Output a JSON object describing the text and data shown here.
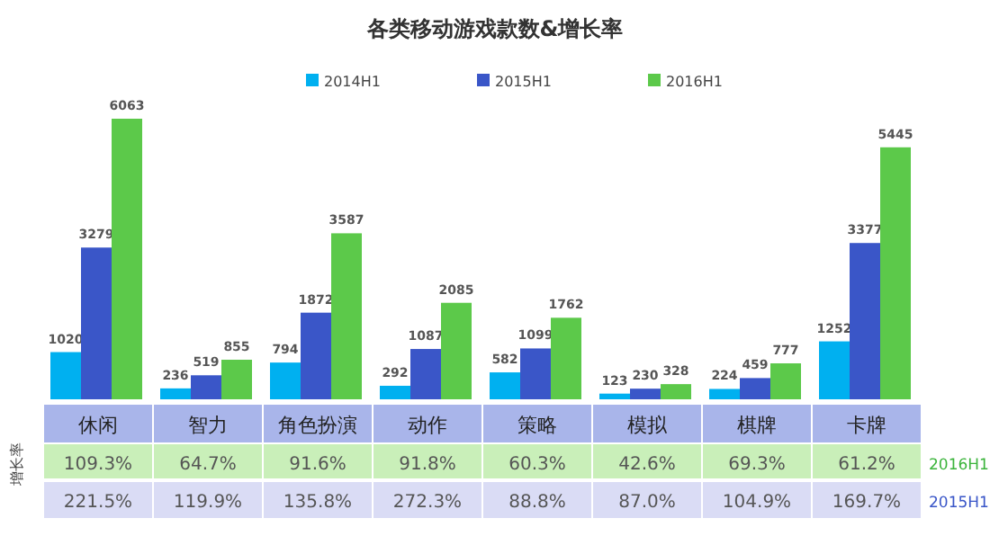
{
  "chart_data": {
    "type": "bar",
    "title": "各类移动游戏款数&增长率",
    "categories": [
      "休闲",
      "智力",
      "角色扮演",
      "动作",
      "策略",
      "模拟",
      "棋牌",
      "卡牌"
    ],
    "series": [
      {
        "name": "2014H1",
        "color": "#00b0f0",
        "values": [
          1020,
          236,
          794,
          292,
          582,
          123,
          224,
          1252
        ]
      },
      {
        "name": "2015H1",
        "color": "#3a56c8",
        "values": [
          3279,
          519,
          1872,
          1087,
          1099,
          230,
          459,
          3377
        ]
      },
      {
        "name": "2016H1",
        "color": "#5cc94a",
        "values": [
          6063,
          855,
          3587,
          2085,
          1762,
          328,
          777,
          5445
        ]
      }
    ],
    "data_labels": true,
    "legend": "top",
    "annotations": [
      "增长率",
      "2016H1",
      "109.3%",
      "64.7%",
      "91.6%",
      "91.8%",
      "60.3%",
      "42.6%",
      "69.3%",
      "61.2%",
      "2015H1",
      "221.5%",
      "119.9%",
      "135.8%",
      "272.3%",
      "88.8%",
      "87.0%",
      "104.9%",
      "169.7%"
    ]
  }
}
